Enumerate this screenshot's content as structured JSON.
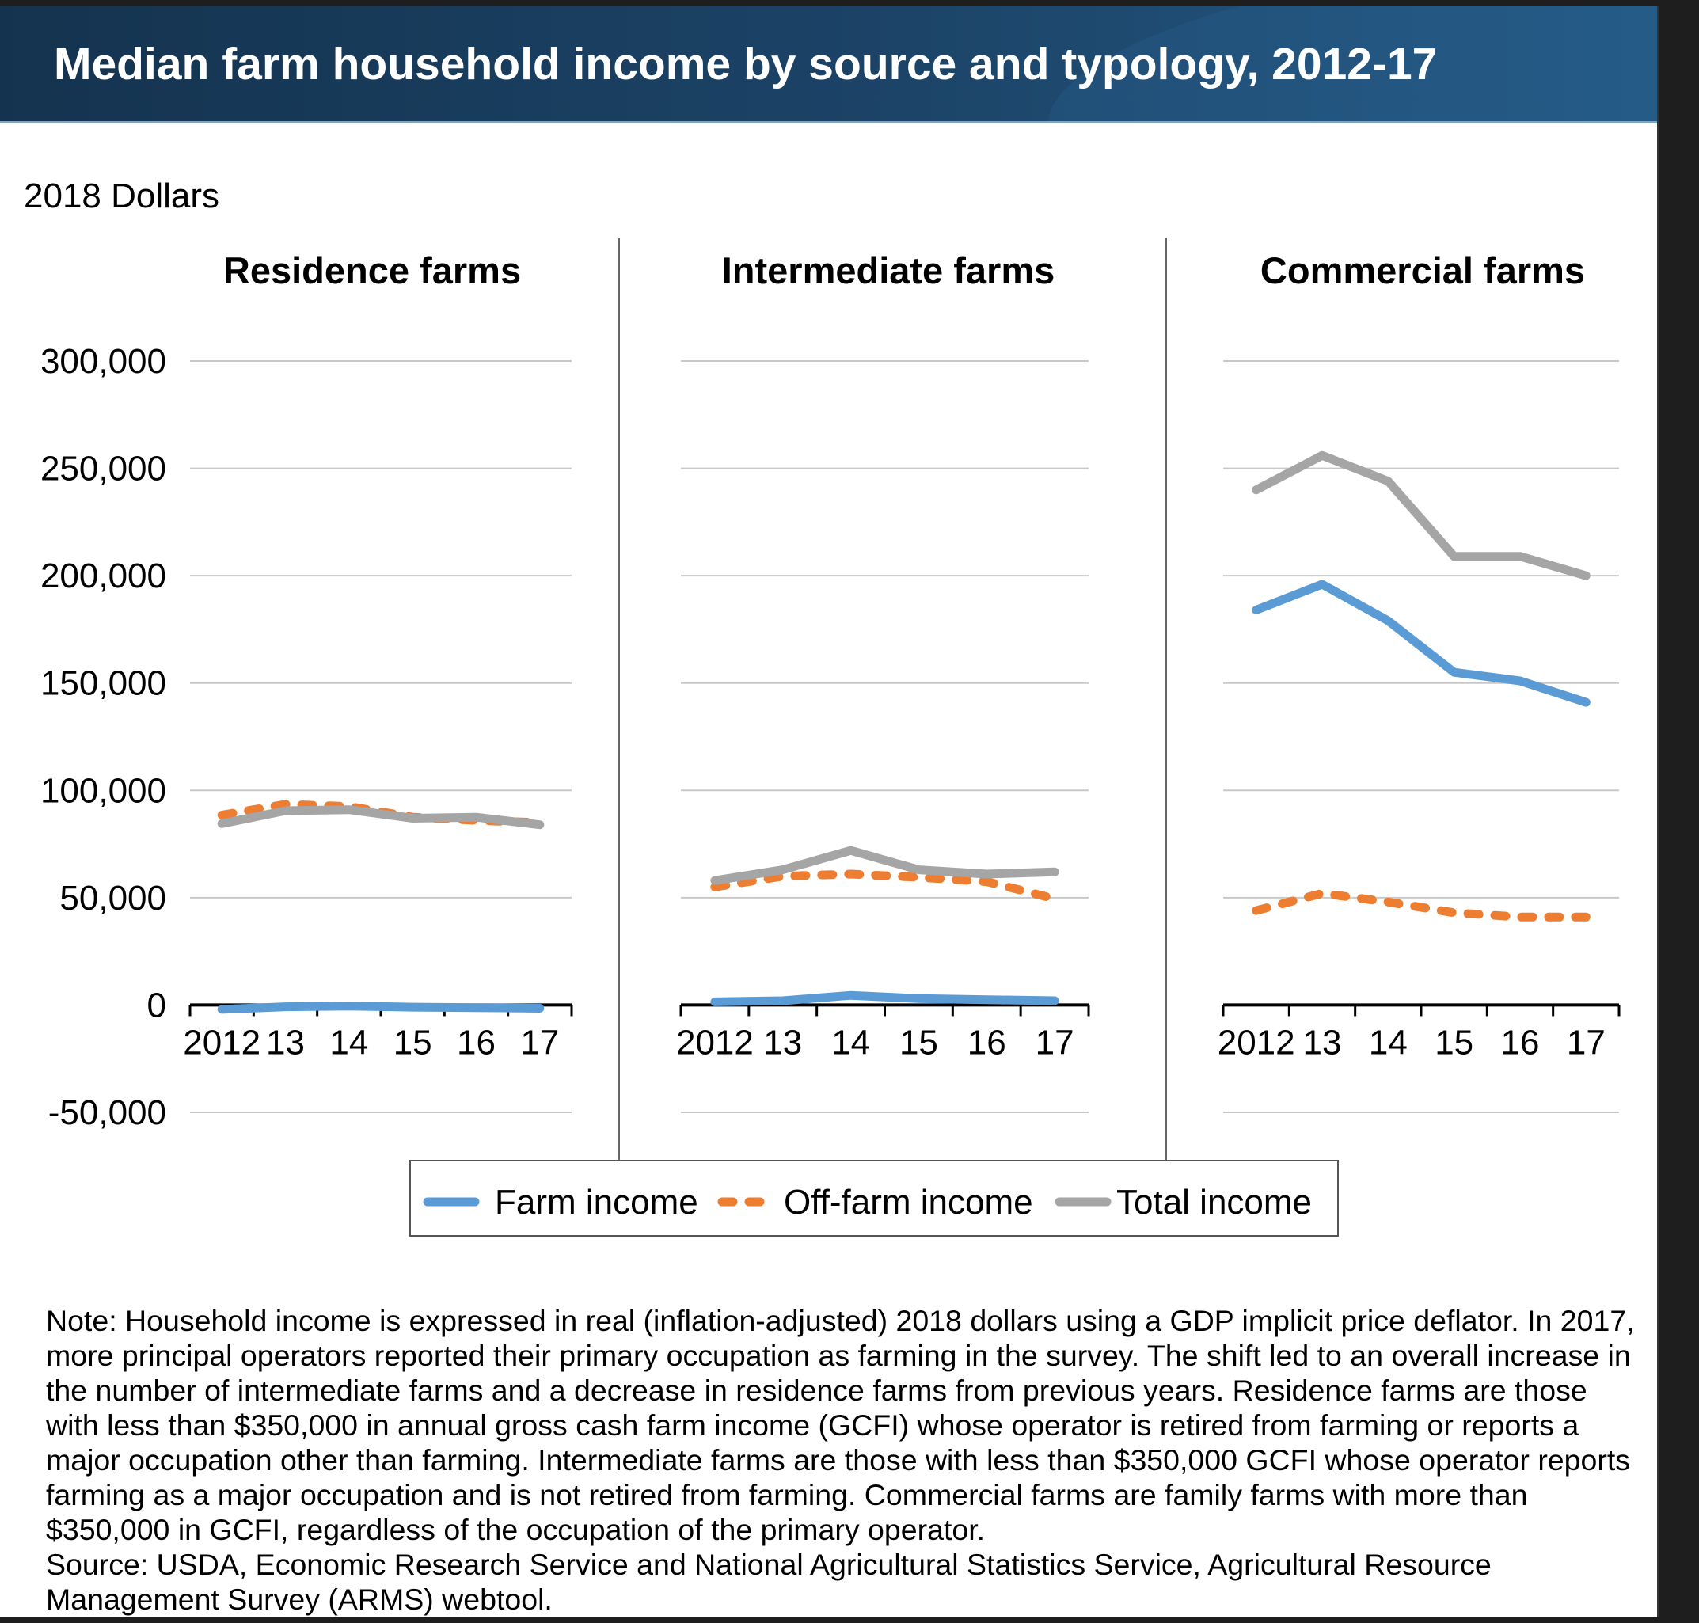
{
  "header": {
    "title": "Median farm household income by source and typology, 2012-17"
  },
  "chart_data": {
    "type": "line",
    "title": "Median farm household income by source and typology, 2012-17",
    "ylabel": "2018 Dollars",
    "ylim": [
      -50000,
      300000
    ],
    "yticks": [
      300000,
      250000,
      200000,
      150000,
      100000,
      50000,
      0,
      -50000
    ],
    "ytick_labels": [
      "300,000",
      "250,000",
      "200,000",
      "150,000",
      "100,000",
      "50,000",
      "0",
      "-50,000"
    ],
    "x": [
      2012,
      2013,
      2014,
      2015,
      2016,
      2017
    ],
    "xtick_labels": [
      "2012",
      "13",
      "14",
      "15",
      "16",
      "17"
    ],
    "grid": true,
    "legend": {
      "placement": "bottom-center",
      "entries": [
        {
          "name": "Farm income",
          "color": "#5b9bd5",
          "style": "solid"
        },
        {
          "name": "Off-farm income",
          "color": "#ed7d31",
          "style": "dashed"
        },
        {
          "name": "Total income",
          "color": "#a5a5a5",
          "style": "solid"
        }
      ]
    },
    "panels": [
      {
        "title": "Residence farms",
        "series": [
          {
            "name": "Farm income",
            "values": [
              -2000,
              -800,
              -500,
              -1000,
              -1200,
              -1500
            ]
          },
          {
            "name": "Off-farm income",
            "values": [
              88500,
              93500,
              92500,
              87500,
              86000,
              85000
            ]
          },
          {
            "name": "Total income",
            "values": [
              84500,
              90500,
              91000,
              87000,
              87500,
              84000
            ]
          }
        ]
      },
      {
        "title": "Intermediate farms",
        "series": [
          {
            "name": "Farm income",
            "values": [
              1500,
              2000,
              4500,
              3000,
              2500,
              2000
            ]
          },
          {
            "name": "Off-farm income",
            "values": [
              55000,
              60000,
              61000,
              59500,
              57500,
              49500
            ]
          },
          {
            "name": "Total income",
            "values": [
              58000,
              63000,
              72000,
              63000,
              61000,
              62000
            ]
          }
        ]
      },
      {
        "title": "Commercial farms",
        "series": [
          {
            "name": "Farm income",
            "values": [
              184000,
              196000,
              179000,
              155000,
              151000,
              141000
            ]
          },
          {
            "name": "Off-farm income",
            "values": [
              44000,
              52000,
              48000,
              43000,
              41000,
              41000
            ]
          },
          {
            "name": "Total income",
            "values": [
              240000,
              256000,
              244000,
              209000,
              209000,
              200000
            ]
          }
        ]
      }
    ]
  },
  "footer": {
    "note": "Note: Household income is expressed in real (inflation-adjusted) 2018 dollars using a GDP implicit price deflator. In 2017, more principal operators reported their primary occupation as farming in the survey. The shift led to an overall increase in the number of intermediate farms and a decrease in residence farms from previous years. Residence farms are those with less than $350,000 in annual gross cash farm income (GCFI) whose operator is retired from farming or reports a major occupation other than farming. Intermediate farms are those with less than $350,000 GCFI whose operator reports farming as a major occupation and is not retired from farming. Commercial farms are family farms with more than $350,000 in GCFI, regardless of the occupation of the primary operator.",
    "source": "Source: USDA, Economic Research Service and National Agricultural Statistics Service, Agricultural Resource Management Survey (ARMS) webtool."
  },
  "colors": {
    "banner": "#1c4468",
    "farm": "#5b9bd5",
    "offfarm": "#ed7d31",
    "total": "#a5a5a5",
    "grid": "#c8c8c8"
  }
}
